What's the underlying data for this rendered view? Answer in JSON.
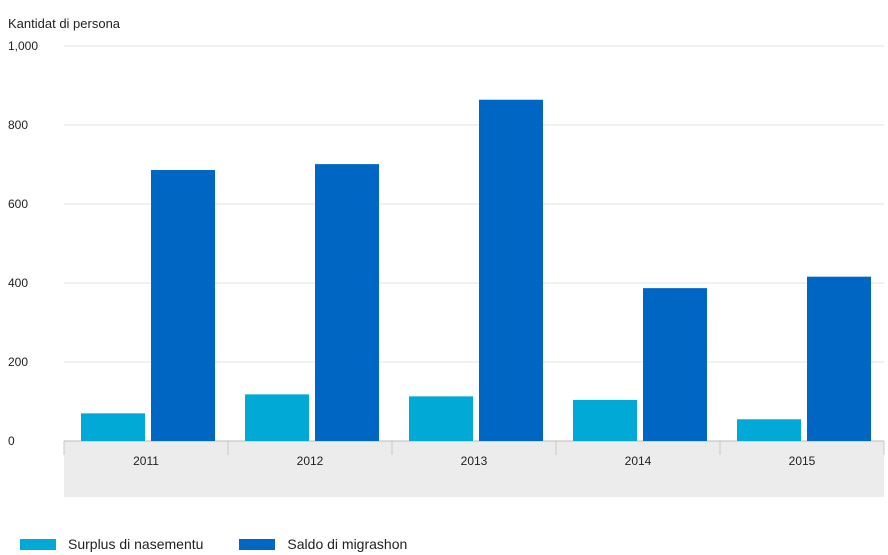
{
  "chart_data": {
    "type": "bar",
    "ylabel": "Kantidat di persona",
    "categories": [
      "2011",
      "2012",
      "2013",
      "2014",
      "2015"
    ],
    "series": [
      {
        "name": "Surplus di nasementu",
        "color": "#00a9d6",
        "values": [
          70,
          118,
          113,
          104,
          55
        ]
      },
      {
        "name": "Saldo di migrashon",
        "color": "#0066c4",
        "values": [
          686,
          701,
          864,
          387,
          416
        ]
      }
    ],
    "ylim": [
      0,
      1000
    ],
    "yticks": [
      0,
      200,
      400,
      600,
      800,
      1000
    ],
    "ytick_labels": [
      "0",
      "200",
      "400",
      "600",
      "800",
      "1,000"
    ],
    "grid": true,
    "legend_position": "bottom-left"
  }
}
